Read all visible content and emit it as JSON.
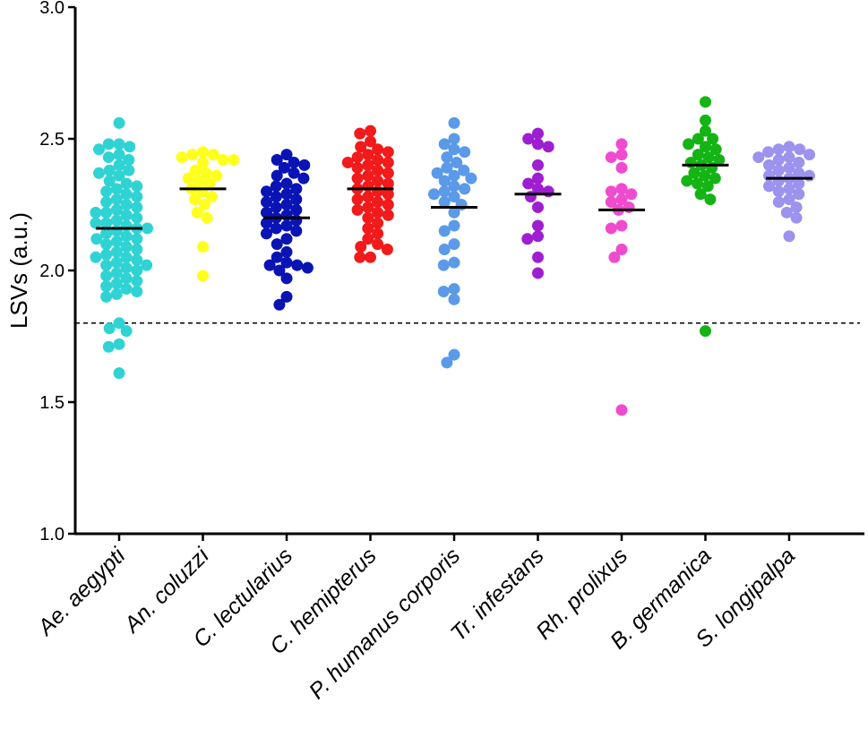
{
  "chart_data": {
    "type": "scatter",
    "title": "",
    "xlabel": "",
    "ylabel": "LSVs (a.u.)",
    "ylim": [
      1.0,
      3.0
    ],
    "yticks": [
      "1.0",
      "1.5",
      "2.0",
      "2.5",
      "3.0"
    ],
    "threshold": 1.8,
    "series": [
      {
        "name": "Ae. aegypti",
        "color": "#30d3d3",
        "mean": 2.16,
        "values": [
          2.56,
          2.48,
          2.48,
          2.47,
          2.46,
          2.44,
          2.43,
          2.42,
          2.4,
          2.38,
          2.38,
          2.37,
          2.36,
          2.34,
          2.33,
          2.32,
          2.31,
          2.3,
          2.29,
          2.28,
          2.27,
          2.26,
          2.25,
          2.24,
          2.23,
          2.22,
          2.22,
          2.21,
          2.2,
          2.19,
          2.18,
          2.18,
          2.17,
          2.16,
          2.16,
          2.15,
          2.14,
          2.13,
          2.12,
          2.12,
          2.11,
          2.1,
          2.09,
          2.08,
          2.07,
          2.06,
          2.05,
          2.05,
          2.04,
          2.03,
          2.02,
          2.02,
          2.01,
          2.0,
          1.99,
          1.98,
          1.97,
          1.96,
          1.95,
          1.94,
          1.93,
          1.92,
          1.91,
          1.9,
          1.8,
          1.78,
          1.77,
          1.72,
          1.71,
          1.61
        ]
      },
      {
        "name": "An. coluzzi",
        "color": "#ffff1e",
        "mean": 2.31,
        "values": [
          2.45,
          2.44,
          2.44,
          2.43,
          2.42,
          2.42,
          2.41,
          2.38,
          2.37,
          2.36,
          2.35,
          2.34,
          2.33,
          2.31,
          2.3,
          2.28,
          2.27,
          2.25,
          2.22,
          2.2,
          2.09,
          1.98
        ]
      },
      {
        "name": "C. lectularius",
        "color": "#0a14b4",
        "mean": 2.2,
        "values": [
          2.44,
          2.42,
          2.41,
          2.4,
          2.39,
          2.37,
          2.36,
          2.35,
          2.33,
          2.32,
          2.31,
          2.3,
          2.29,
          2.28,
          2.27,
          2.26,
          2.25,
          2.24,
          2.23,
          2.22,
          2.21,
          2.2,
          2.19,
          2.18,
          2.17,
          2.16,
          2.15,
          2.14,
          2.12,
          2.1,
          2.07,
          2.05,
          2.03,
          2.02,
          2.02,
          2.01,
          2.0,
          1.97,
          1.9,
          1.87
        ]
      },
      {
        "name": "C. hemipterus",
        "color": "#f21a1a",
        "mean": 2.31,
        "values": [
          2.53,
          2.52,
          2.49,
          2.47,
          2.46,
          2.45,
          2.44,
          2.43,
          2.42,
          2.41,
          2.41,
          2.4,
          2.39,
          2.38,
          2.37,
          2.36,
          2.35,
          2.34,
          2.33,
          2.32,
          2.31,
          2.3,
          2.29,
          2.28,
          2.27,
          2.26,
          2.25,
          2.24,
          2.23,
          2.22,
          2.21,
          2.2,
          2.18,
          2.16,
          2.14,
          2.12,
          2.1,
          2.09,
          2.08,
          2.05,
          2.05
        ]
      },
      {
        "name": "P. humanus corporis",
        "color": "#5a9ae8",
        "mean": 2.24,
        "values": [
          2.56,
          2.5,
          2.48,
          2.46,
          2.45,
          2.43,
          2.41,
          2.39,
          2.38,
          2.37,
          2.36,
          2.35,
          2.34,
          2.32,
          2.31,
          2.3,
          2.29,
          2.28,
          2.26,
          2.25,
          2.22,
          2.17,
          2.15,
          2.1,
          2.08,
          2.03,
          2.02,
          1.93,
          1.92,
          1.89,
          1.68,
          1.65
        ]
      },
      {
        "name": "Tr. infestans",
        "color": "#9e1ed2",
        "mean": 2.29,
        "values": [
          2.52,
          2.5,
          2.48,
          2.47,
          2.4,
          2.35,
          2.33,
          2.31,
          2.3,
          2.28,
          2.24,
          2.17,
          2.13,
          2.12,
          2.05,
          1.99
        ]
      },
      {
        "name": "Rh. prolixus",
        "color": "#f04bce",
        "mean": 2.23,
        "values": [
          2.48,
          2.44,
          2.43,
          2.39,
          2.31,
          2.3,
          2.29,
          2.27,
          2.26,
          2.24,
          2.23,
          2.17,
          2.16,
          2.08,
          2.05,
          1.47
        ]
      },
      {
        "name": "B. germanica",
        "color": "#14b414",
        "mean": 2.4,
        "values": [
          2.64,
          2.57,
          2.53,
          2.5,
          2.5,
          2.48,
          2.47,
          2.46,
          2.44,
          2.43,
          2.42,
          2.41,
          2.4,
          2.39,
          2.37,
          2.36,
          2.35,
          2.34,
          2.33,
          2.32,
          2.29,
          2.27,
          1.77
        ]
      },
      {
        "name": "S. longipalpa",
        "color": "#9b93ee",
        "mean": 2.35,
        "values": [
          2.47,
          2.46,
          2.46,
          2.45,
          2.44,
          2.43,
          2.43,
          2.42,
          2.41,
          2.4,
          2.39,
          2.38,
          2.37,
          2.36,
          2.36,
          2.35,
          2.34,
          2.33,
          2.32,
          2.31,
          2.3,
          2.29,
          2.27,
          2.26,
          2.24,
          2.22,
          2.2,
          2.13
        ]
      }
    ]
  }
}
